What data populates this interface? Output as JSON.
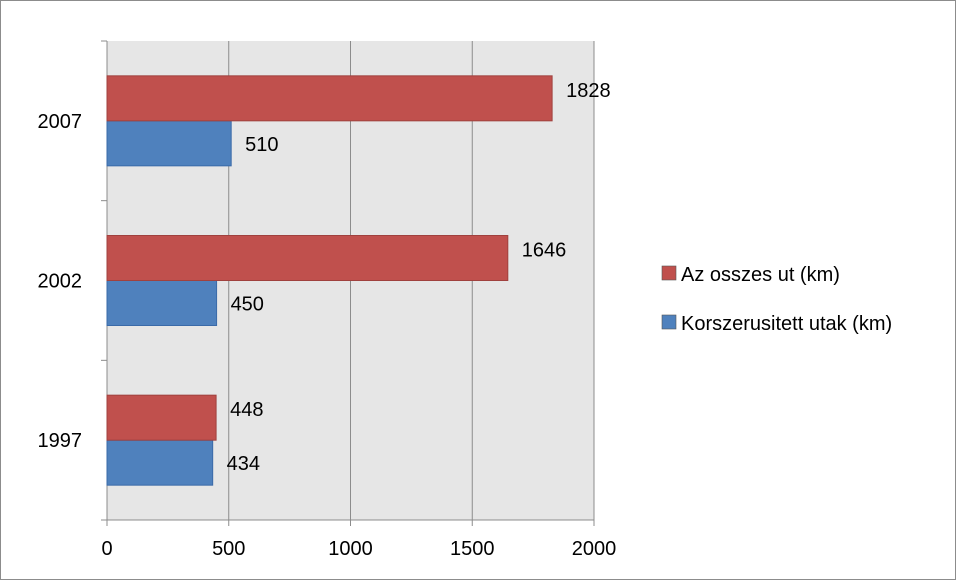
{
  "chart_data": {
    "type": "bar",
    "orientation": "horizontal",
    "categories": [
      "1997",
      "2002",
      "2007"
    ],
    "series": [
      {
        "name": "Korszerusitett utak (km)",
        "values": [
          434,
          450,
          510
        ],
        "color": "#4f81bd"
      },
      {
        "name": "Az osszes ut (km)",
        "values": [
          448,
          1646,
          1828
        ],
        "color": "#c0504d"
      }
    ],
    "xlim": [
      0,
      2000
    ],
    "xticks": [
      0,
      500,
      1000,
      1500,
      2000
    ],
    "grid": true,
    "plot_background": "#e6e6e6",
    "legend_position": "right",
    "legend_order": [
      "Az osszes ut (km)",
      "Korszerusitett utak (km)"
    ],
    "data_labels": true
  }
}
